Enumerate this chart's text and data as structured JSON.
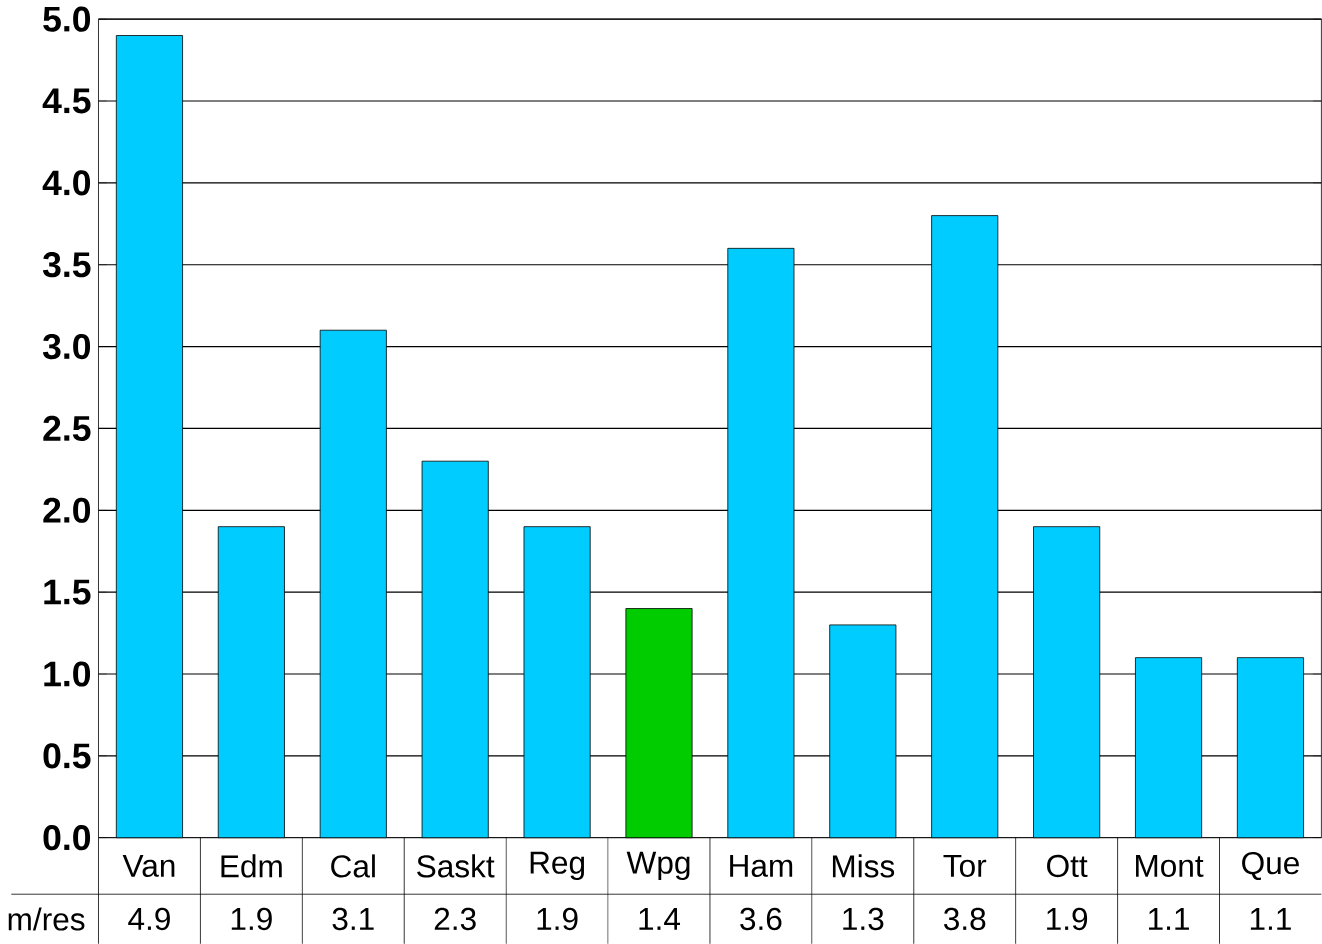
{
  "chart_data": {
    "type": "bar",
    "categories": [
      "Van",
      "Edm",
      "Cal",
      "Saskt",
      "Reg",
      "Wpg",
      "Ham",
      "Miss",
      "Tor",
      "Ott",
      "Mont",
      "Que"
    ],
    "series": [
      {
        "name": "m/res",
        "values": [
          4.9,
          1.9,
          3.1,
          2.3,
          1.9,
          1.4,
          3.6,
          1.3,
          3.8,
          1.9,
          1.1,
          1.1
        ],
        "colors": [
          "#00ccff",
          "#00ccff",
          "#00ccff",
          "#00ccff",
          "#00ccff",
          "#00cc00",
          "#00ccff",
          "#00ccff",
          "#00ccff",
          "#00ccff",
          "#00ccff",
          "#00ccff"
        ]
      }
    ],
    "ylim": [
      0,
      5
    ],
    "yticks": [
      {
        "value": 0,
        "label": "0.0"
      },
      {
        "value": 0.5,
        "label": "0.5"
      },
      {
        "value": 1,
        "label": "1.0"
      },
      {
        "value": 1.5,
        "label": "1.5"
      },
      {
        "value": 2,
        "label": "2.0"
      },
      {
        "value": 2.5,
        "label": "2.5"
      },
      {
        "value": 3,
        "label": "3.0"
      },
      {
        "value": 3.5,
        "label": "3.5"
      },
      {
        "value": 4,
        "label": "4.0"
      },
      {
        "value": 4.5,
        "label": "4.5"
      },
      {
        "value": 5,
        "label": "5.0"
      }
    ],
    "grid": "y",
    "data_labels": true
  }
}
